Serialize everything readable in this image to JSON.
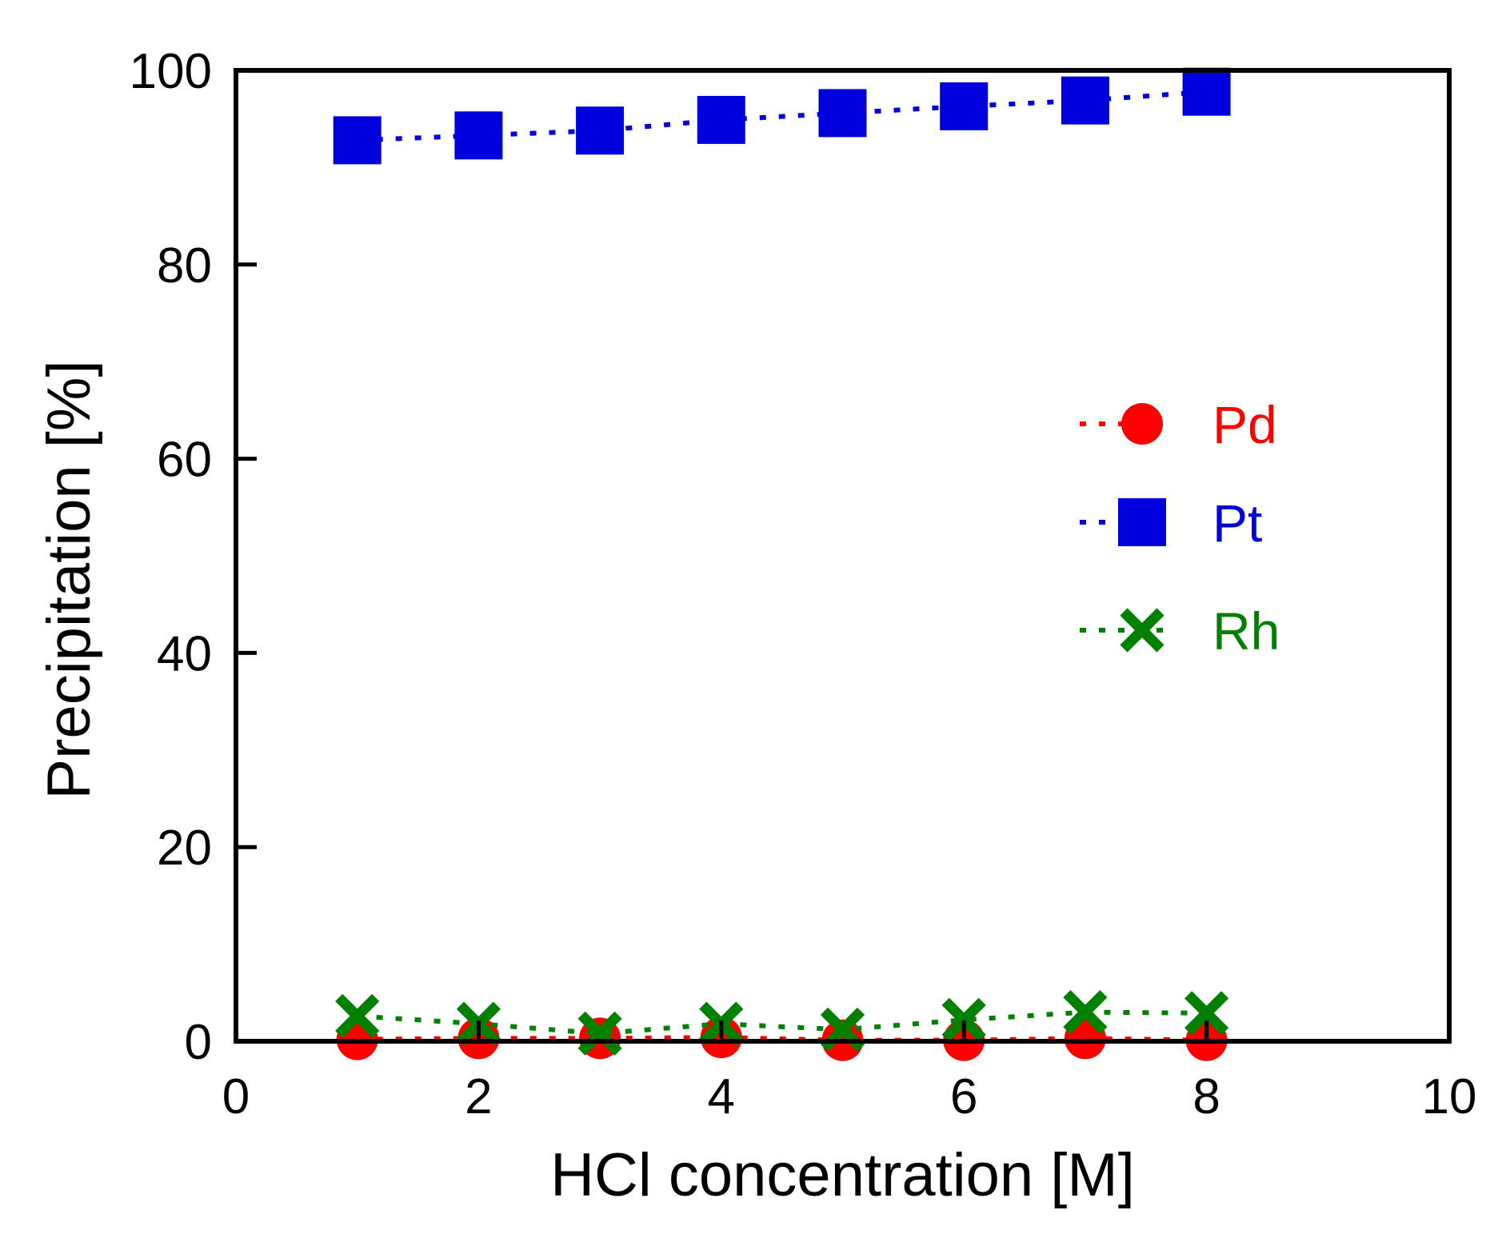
{
  "chart_data": {
    "type": "scatter",
    "title": "",
    "xlabel": "HCl concentration [M]",
    "ylabel": "Precipitation [%]",
    "xlim": [
      0,
      10
    ],
    "ylim": [
      0,
      100
    ],
    "xticks": [
      0,
      2,
      4,
      6,
      8,
      10
    ],
    "yticks": [
      0,
      20,
      40,
      60,
      80,
      100
    ],
    "x_tick_labels": [
      "0",
      "2",
      "4",
      "6",
      "8",
      "10"
    ],
    "y_tick_labels": [
      "0",
      "20",
      "40",
      "60",
      "80",
      "100"
    ],
    "legend_position": "right, upper-middle",
    "series": [
      {
        "name": "Pd",
        "color": "#ff0000",
        "marker": "circle",
        "line": "dotted",
        "x": [
          1,
          2,
          3,
          4,
          5,
          6,
          7,
          8
        ],
        "y": [
          0.2,
          0.3,
          0.3,
          0.4,
          0.1,
          0.1,
          0.3,
          0.1
        ]
      },
      {
        "name": "Pt",
        "color": "#0000dd",
        "marker": "square",
        "line": "dotted",
        "x": [
          1,
          2,
          3,
          4,
          5,
          6,
          7,
          8
        ],
        "y": [
          92.8,
          93.3,
          93.8,
          94.9,
          95.6,
          96.3,
          96.9,
          97.8
        ]
      },
      {
        "name": "Rh",
        "color": "#008000",
        "marker": "x",
        "line": "dotted",
        "x": [
          1,
          2,
          3,
          4,
          5,
          6,
          7,
          8
        ],
        "y": [
          2.6,
          1.8,
          0.8,
          1.8,
          1.2,
          2.2,
          3.0,
          2.9
        ]
      }
    ]
  }
}
